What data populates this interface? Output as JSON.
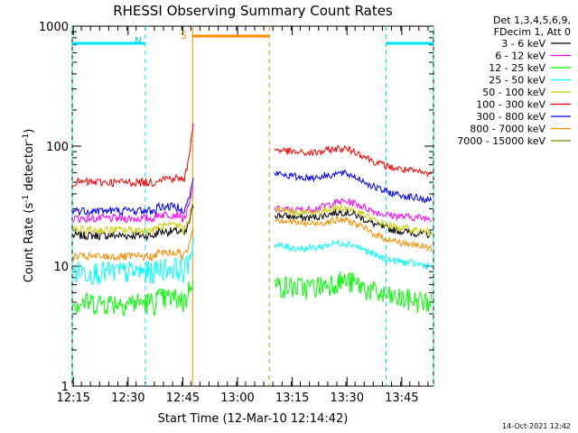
{
  "chart_data": {
    "type": "line",
    "title": "RHESSI Observing Summary Count Rates",
    "xlabel": "Start Time (12-Mar-10 12:14:42)",
    "ylabel_main": "Count Rate (s",
    "ylabel_sup1": "-1",
    "ylabel_mid": " detector",
    "ylabel_sup2": "-1",
    "ylabel_end": ")",
    "yscale": "log",
    "ylim": [
      1,
      1000
    ],
    "xlim_minutes": [
      0,
      99
    ],
    "x_tick_labels": [
      "12:15",
      "12:30",
      "12:45",
      "13:00",
      "13:15",
      "13:30",
      "13:45"
    ],
    "x_tick_minutes": [
      0.3,
      15.3,
      30.3,
      45.3,
      60.3,
      75.3,
      90.3
    ],
    "y_tick_labels": [
      "1",
      "10",
      "100",
      "1000"
    ],
    "y_tick_values": [
      1,
      10,
      100,
      1000
    ],
    "legend_header": [
      "Det 1,3,4,5,6,9,",
      "FDecim 1, Att 0"
    ],
    "timestamp": "14-Oct-2021 12:42",
    "night_label": "N",
    "saa_label": "S",
    "night_intervals": [
      [
        0,
        20
      ],
      [
        86,
        99
      ]
    ],
    "saa_interval": [
      33,
      54
    ],
    "gap_interval": [
      33.2,
      54.8
    ],
    "series": [
      {
        "name": "3 - 6 keV",
        "color": "#000000",
        "before": 18,
        "after": 27,
        "after_end": 18
      },
      {
        "name": "6 - 12 keV",
        "color": "#ff00ff",
        "before": 25,
        "after": 30,
        "after_end": 25
      },
      {
        "name": "12 - 25 keV",
        "color": "#00ff00",
        "before": 5,
        "after": 7,
        "after_end": 5
      },
      {
        "name": "25 - 50 keV",
        "color": "#00ffff",
        "before": 9,
        "after": 15,
        "after_end": 10
      },
      {
        "name": "50 - 100 keV",
        "color": "#cccc00",
        "before": 20,
        "after": 30,
        "after_end": 19
      },
      {
        "name": "100 - 300 keV",
        "color": "#ff0000",
        "before": 50,
        "after": 95,
        "after_end": 58
      },
      {
        "name": "300 - 800 keV",
        "color": "#0000ff",
        "before": 29,
        "after": 60,
        "after_end": 35
      },
      {
        "name": "800 - 7000 keV",
        "color": "#ff8c00",
        "before": 12,
        "after": 25,
        "after_end": 14
      },
      {
        "name": "7000 - 15000 keV",
        "color": "#808000",
        "before": null,
        "after": null,
        "after_end": null
      }
    ]
  }
}
